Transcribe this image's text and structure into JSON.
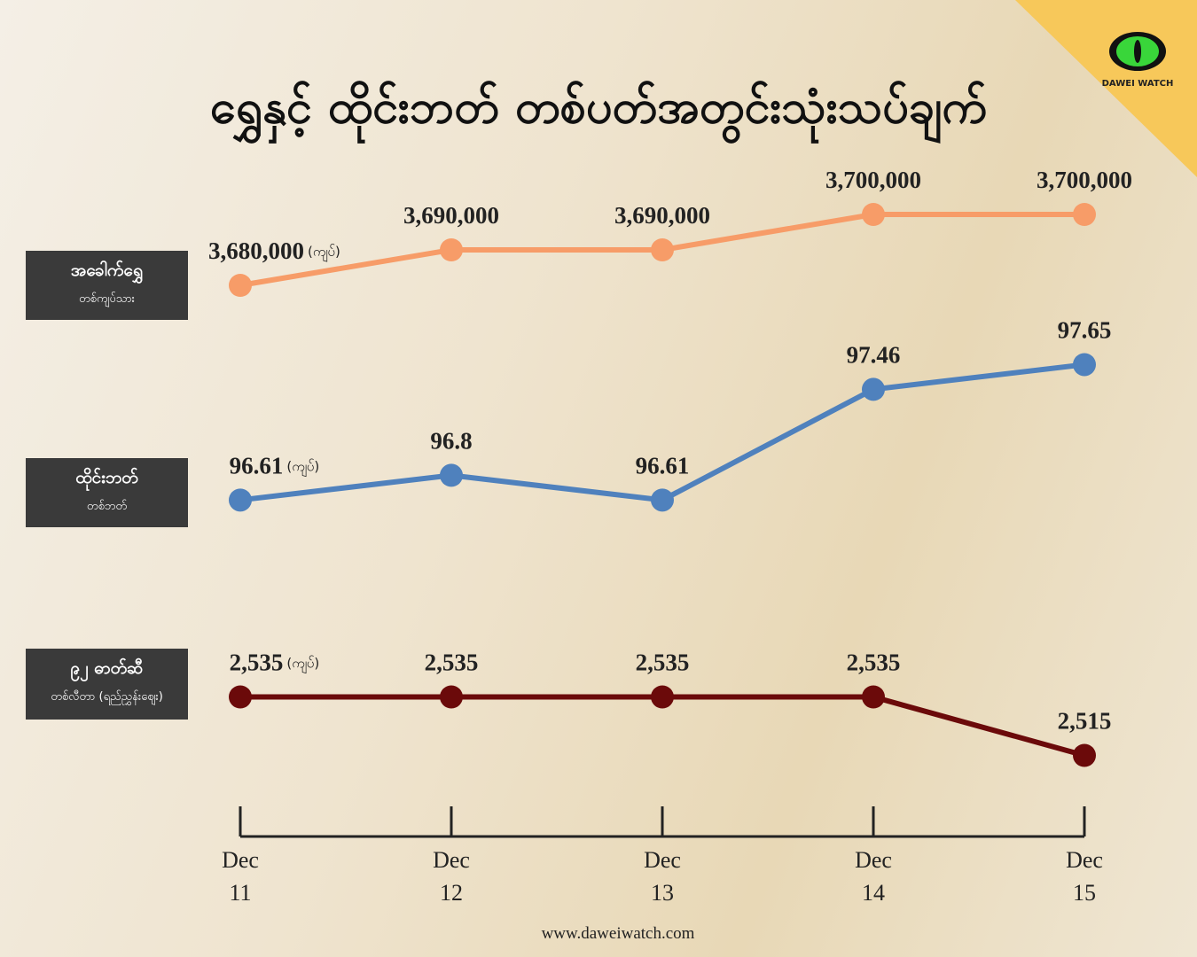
{
  "title": "ရွှေနှင့် ထိုင်းဘတ် တစ်ပတ်အတွင်းသုံးသပ်ချက်",
  "logo": "DAWEI WATCH",
  "footer": "www.daweiwatch.com",
  "categories": [
    "Dec 11",
    "Dec 12",
    "Dec 13",
    "Dec 14",
    "Dec 15"
  ],
  "chart_data": [
    {
      "type": "line",
      "name": "အခေါက်ရွှေ",
      "subtitle": "တစ်ကျပ်သား",
      "unit": "(ကျပ်)",
      "color": "#f79c68",
      "values": [
        3680000,
        3690000,
        3690000,
        3700000,
        3700000
      ],
      "value_labels": [
        "3,680,000",
        "3,690,000",
        "3,690,000",
        "3,700,000",
        "3,700,000"
      ],
      "ylim": [
        3670000,
        3720000
      ]
    },
    {
      "type": "line",
      "name": "ထိုင်းဘတ်",
      "subtitle": "တစ်ဘတ်",
      "unit": "(ကျပ်)",
      "color": "#4f81bd",
      "values": [
        96.61,
        96.8,
        96.61,
        97.46,
        97.65
      ],
      "ylim": [
        96,
        98
      ]
    },
    {
      "type": "line",
      "name": "၉၂ ဓာတ်ဆီ",
      "subtitle": "တစ်လီတာ (ရည်ညွှန်းဈေး)",
      "unit": "(ကျပ်)",
      "color": "#6b0a0a",
      "values": [
        2535,
        2535,
        2535,
        2535,
        2515
      ],
      "value_labels": [
        "2,535",
        "2,535",
        "2,535",
        "2,535",
        "2,515"
      ],
      "ylim": [
        2500,
        2550
      ]
    }
  ]
}
